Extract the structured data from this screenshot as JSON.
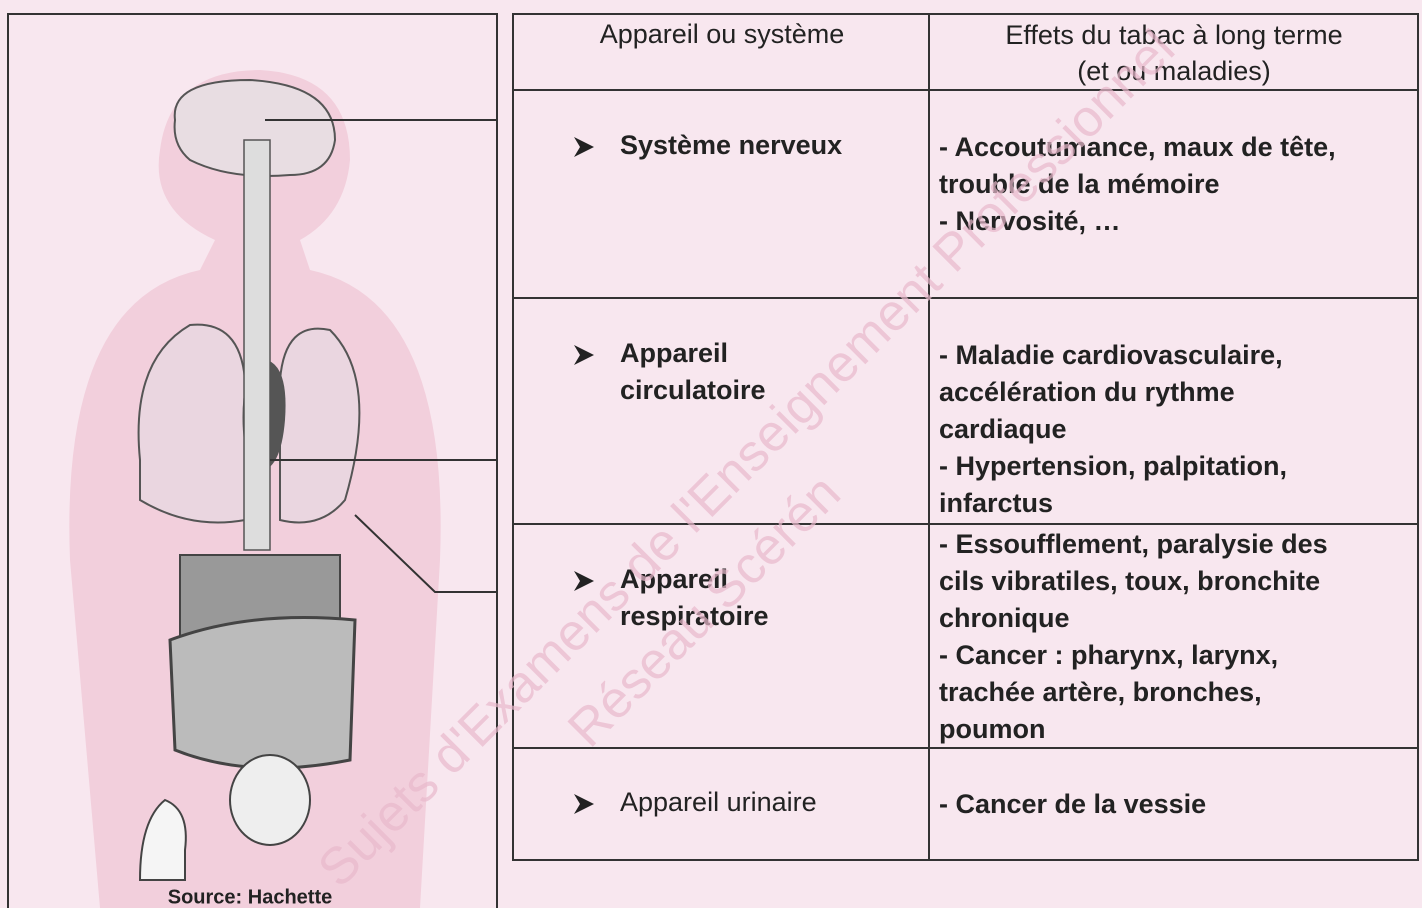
{
  "table": {
    "header": [
      "Appareil ou système",
      [
        "Effets du tabac à long terme",
        "(et ou maladies)"
      ]
    ],
    "rows": [
      {
        "system": [
          "Système nerveux"
        ],
        "bold": true,
        "effects": [
          "- Accoutumance, maux de tête,",
          "trouble de la mémoire",
          "- Nervosité, …"
        ]
      },
      {
        "system": [
          "Appareil",
          "circulatoire"
        ],
        "bold": true,
        "effects": [
          "- Maladie cardiovasculaire,",
          "accélération du rythme",
          "cardiaque",
          "- Hypertension, palpitation,",
          "infarctus"
        ]
      },
      {
        "system": [
          "Appareil",
          "respiratoire"
        ],
        "bold": true,
        "effects": [
          "- Essoufflement, paralysie des",
          "cils vibratiles, toux, bronchite",
          "chronique",
          "- Cancer :  pharynx, larynx,",
          "trachée artère, bronches,",
          "poumon"
        ]
      },
      {
        "system": [
          "Appareil urinaire"
        ],
        "bold": false,
        "effects": [
          "- Cancer de la vessie"
        ]
      }
    ]
  },
  "figure": {
    "source": "Source: Hachette"
  },
  "watermark": [
    "Sujets d'Examens de l'Enseignement Professionnel",
    "Réseau Scérén"
  ]
}
